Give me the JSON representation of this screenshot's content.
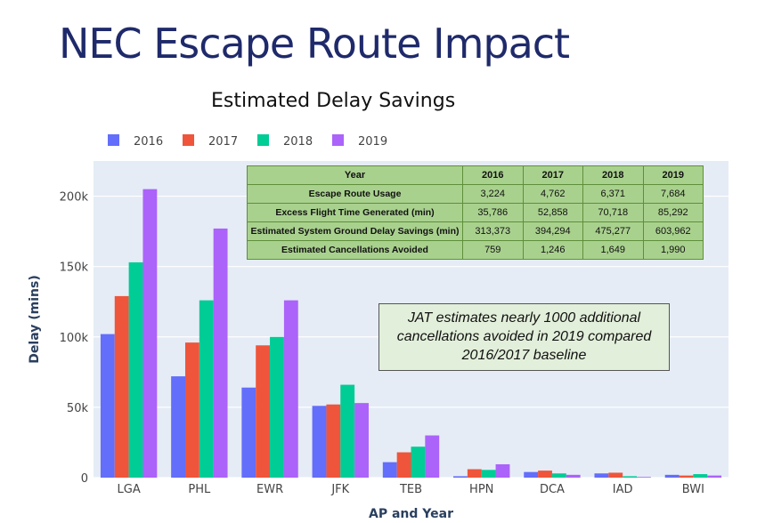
{
  "slide_title": "NEC Escape Route Impact",
  "table": {
    "header": [
      "Year",
      "2016",
      "2017",
      "2018",
      "2019"
    ],
    "rows": [
      {
        "label": "Escape Route Usage",
        "cells": [
          "3,224",
          "4,762",
          "6,371",
          "7,684"
        ]
      },
      {
        "label": "Excess Flight Time Generated (min)",
        "cells": [
          "35,786",
          "52,858",
          "70,718",
          "85,292"
        ]
      },
      {
        "label": "Estimated System Ground Delay Savings (min)",
        "cells": [
          "313,373",
          "394,294",
          "475,277",
          "603,962"
        ]
      },
      {
        "label": "Estimated Cancellations Avoided",
        "cells": [
          "759",
          "1,246",
          "1,649",
          "1,990"
        ]
      }
    ]
  },
  "annotation": {
    "lines": [
      "JAT estimates nearly 1000 additional",
      "cancellations avoided in 2019 compared",
      "2016/2017 baseline"
    ]
  },
  "chart_data": {
    "type": "bar",
    "title": "Estimated Delay Savings",
    "xlabel": "AP and Year",
    "ylabel": "Delay (mins)",
    "ylim": [
      0,
      225000
    ],
    "yticks": [
      0,
      50000,
      100000,
      150000,
      200000
    ],
    "ytick_labels": [
      "0",
      "50k",
      "100k",
      "150k",
      "200k"
    ],
    "grid": true,
    "legend_position": "top-left",
    "categories": [
      "LGA",
      "PHL",
      "EWR",
      "JFK",
      "TEB",
      "HPN",
      "DCA",
      "IAD",
      "BWI"
    ],
    "series": [
      {
        "name": "2016",
        "color": "#636efa",
        "values": [
          102000,
          72000,
          64000,
          51000,
          11000,
          1000,
          4000,
          3000,
          2000
        ]
      },
      {
        "name": "2017",
        "color": "#ef553b",
        "values": [
          129000,
          96000,
          94000,
          52000,
          18000,
          6000,
          5000,
          3500,
          1500
        ]
      },
      {
        "name": "2018",
        "color": "#00cc96",
        "values": [
          153000,
          126000,
          100000,
          66000,
          22000,
          5500,
          3000,
          1000,
          2500
        ]
      },
      {
        "name": "2019",
        "color": "#ab63fa",
        "values": [
          205000,
          177000,
          126000,
          53000,
          30000,
          9500,
          2000,
          500,
          1500
        ]
      }
    ],
    "plot_background": "#e5ecf6"
  }
}
